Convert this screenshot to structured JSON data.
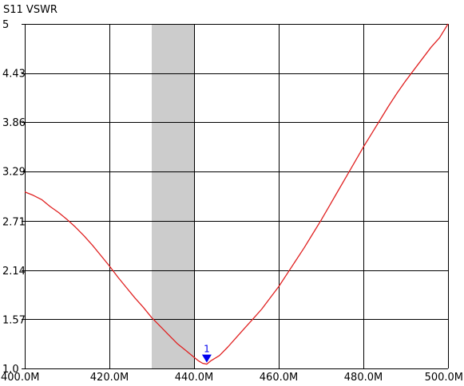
{
  "chart_data": {
    "type": "line",
    "title": "S11 VSWR",
    "xlim": [
      400,
      500
    ],
    "ylim": [
      1.0,
      5.0
    ],
    "x_ticks": [
      400,
      420,
      440,
      460,
      480,
      500
    ],
    "x_tick_labels": [
      "400.0M",
      "420.0M",
      "440.0M",
      "460.0M",
      "480.0M",
      "500.0M"
    ],
    "y_ticks": [
      1.0,
      1.57,
      2.14,
      2.71,
      3.29,
      3.86,
      4.43,
      5.0
    ],
    "y_tick_labels": [
      "1.0",
      "1.57",
      "2.14",
      "2.71",
      "3.29",
      "3.86",
      "4.43",
      "5"
    ],
    "grid": true,
    "highlight_band": {
      "x_start": 430,
      "x_end": 440,
      "color": "#cccccc"
    },
    "series": [
      {
        "color": "#e02020",
        "points": [
          [
            400,
            3.05
          ],
          [
            402,
            3.01
          ],
          [
            404,
            2.96
          ],
          [
            406,
            2.88
          ],
          [
            408,
            2.81
          ],
          [
            410,
            2.73
          ],
          [
            412,
            2.64
          ],
          [
            414,
            2.54
          ],
          [
            416,
            2.43
          ],
          [
            418,
            2.31
          ],
          [
            420,
            2.19
          ],
          [
            422,
            2.06
          ],
          [
            424,
            1.94
          ],
          [
            426,
            1.82
          ],
          [
            428,
            1.71
          ],
          [
            430,
            1.59
          ],
          [
            432,
            1.49
          ],
          [
            434,
            1.39
          ],
          [
            436,
            1.29
          ],
          [
            438,
            1.21
          ],
          [
            440,
            1.13
          ],
          [
            441,
            1.09
          ],
          [
            442,
            1.06
          ],
          [
            443,
            1.05
          ],
          [
            444,
            1.09
          ],
          [
            446,
            1.15
          ],
          [
            448,
            1.25
          ],
          [
            450,
            1.36
          ],
          [
            452,
            1.47
          ],
          [
            454,
            1.58
          ],
          [
            456,
            1.69
          ],
          [
            458,
            1.82
          ],
          [
            460,
            1.95
          ],
          [
            462,
            2.1
          ],
          [
            464,
            2.25
          ],
          [
            466,
            2.4
          ],
          [
            468,
            2.56
          ],
          [
            470,
            2.72
          ],
          [
            472,
            2.89
          ],
          [
            474,
            3.06
          ],
          [
            476,
            3.23
          ],
          [
            478,
            3.4
          ],
          [
            480,
            3.57
          ],
          [
            482,
            3.73
          ],
          [
            484,
            3.89
          ],
          [
            486,
            4.05
          ],
          [
            488,
            4.2
          ],
          [
            490,
            4.34
          ],
          [
            492,
            4.47
          ],
          [
            494,
            4.6
          ],
          [
            496,
            4.73
          ],
          [
            498,
            4.84
          ],
          [
            500,
            5.0
          ]
        ]
      }
    ],
    "markers": [
      {
        "label": "1",
        "x": 443,
        "y": 1.05,
        "color": "#0000ee"
      }
    ]
  }
}
